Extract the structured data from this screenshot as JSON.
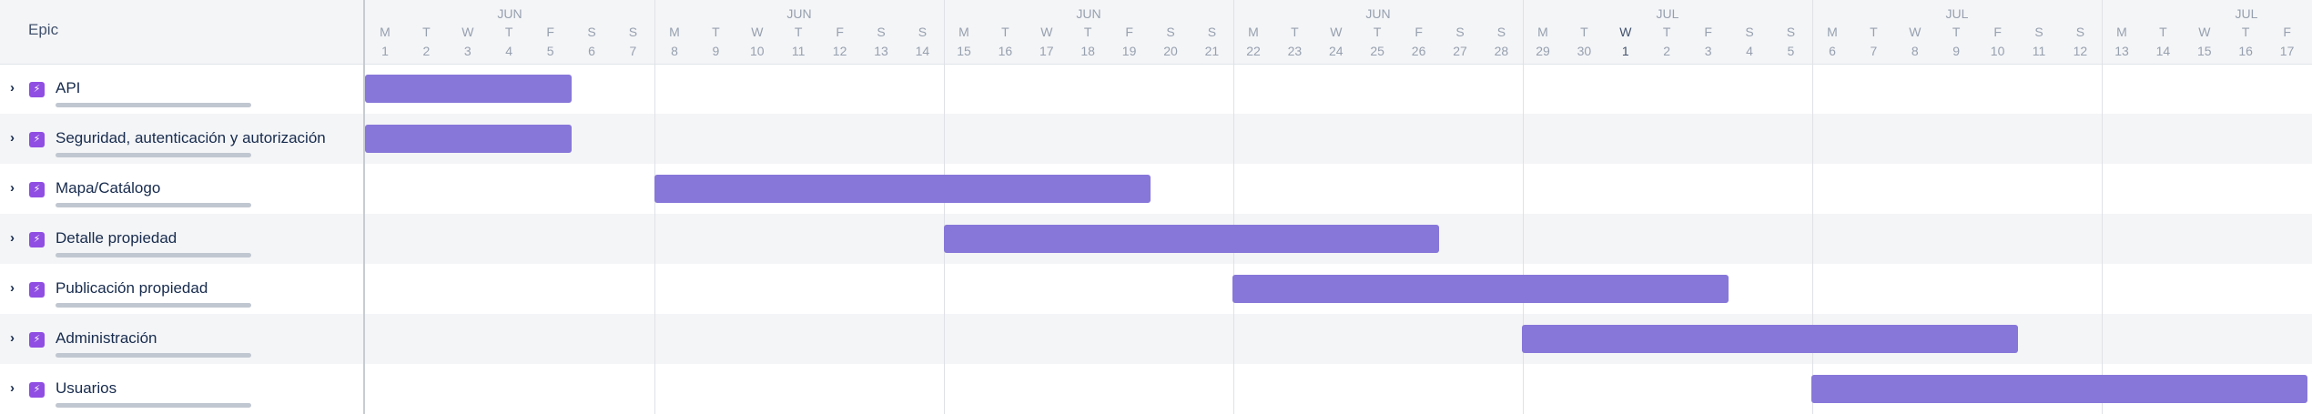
{
  "header": {
    "epic_label": "Epic"
  },
  "epics": [
    {
      "name": "API",
      "expand_icon": "chevron-right-icon",
      "type_icon": "epic-bolt-icon"
    },
    {
      "name": "Seguridad, autenticación y autorización",
      "expand_icon": "chevron-right-icon",
      "type_icon": "epic-bolt-icon"
    },
    {
      "name": "Mapa/Catálogo",
      "expand_icon": "chevron-right-icon",
      "type_icon": "epic-bolt-icon"
    },
    {
      "name": "Detalle propiedad",
      "expand_icon": "chevron-right-icon",
      "type_icon": "epic-bolt-icon"
    },
    {
      "name": "Publicación propiedad",
      "expand_icon": "chevron-right-icon",
      "type_icon": "epic-bolt-icon"
    },
    {
      "name": "Administración",
      "expand_icon": "chevron-right-icon",
      "type_icon": "epic-bolt-icon"
    },
    {
      "name": "Usuarios",
      "expand_icon": "chevron-right-icon",
      "type_icon": "epic-bolt-icon"
    }
  ],
  "timeline": {
    "weeks": [
      {
        "month": "JUN",
        "days": [
          {
            "dow": "M",
            "day": "1"
          },
          {
            "dow": "T",
            "day": "2"
          },
          {
            "dow": "W",
            "day": "3"
          },
          {
            "dow": "T",
            "day": "4"
          },
          {
            "dow": "F",
            "day": "5"
          },
          {
            "dow": "S",
            "day": "6"
          },
          {
            "dow": "S",
            "day": "7"
          }
        ]
      },
      {
        "month": "JUN",
        "days": [
          {
            "dow": "M",
            "day": "8"
          },
          {
            "dow": "T",
            "day": "9"
          },
          {
            "dow": "W",
            "day": "10"
          },
          {
            "dow": "T",
            "day": "11"
          },
          {
            "dow": "F",
            "day": "12"
          },
          {
            "dow": "S",
            "day": "13"
          },
          {
            "dow": "S",
            "day": "14"
          }
        ]
      },
      {
        "month": "JUN",
        "days": [
          {
            "dow": "M",
            "day": "15"
          },
          {
            "dow": "T",
            "day": "16"
          },
          {
            "dow": "W",
            "day": "17"
          },
          {
            "dow": "T",
            "day": "18"
          },
          {
            "dow": "F",
            "day": "19"
          },
          {
            "dow": "S",
            "day": "20"
          },
          {
            "dow": "S",
            "day": "21"
          }
        ]
      },
      {
        "month": "JUN",
        "days": [
          {
            "dow": "M",
            "day": "22"
          },
          {
            "dow": "T",
            "day": "23"
          },
          {
            "dow": "W",
            "day": "24"
          },
          {
            "dow": "T",
            "day": "25"
          },
          {
            "dow": "F",
            "day": "26"
          },
          {
            "dow": "S",
            "day": "27"
          },
          {
            "dow": "S",
            "day": "28"
          }
        ]
      },
      {
        "month": "JUL",
        "days": [
          {
            "dow": "M",
            "day": "29"
          },
          {
            "dow": "T",
            "day": "30"
          },
          {
            "dow": "W",
            "day": "1",
            "today": true
          },
          {
            "dow": "T",
            "day": "2"
          },
          {
            "dow": "F",
            "day": "3"
          },
          {
            "dow": "S",
            "day": "4"
          },
          {
            "dow": "S",
            "day": "5"
          }
        ]
      },
      {
        "month": "JUL",
        "days": [
          {
            "dow": "M",
            "day": "6"
          },
          {
            "dow": "T",
            "day": "7"
          },
          {
            "dow": "W",
            "day": "8"
          },
          {
            "dow": "T",
            "day": "9"
          },
          {
            "dow": "F",
            "day": "10"
          },
          {
            "dow": "S",
            "day": "11"
          },
          {
            "dow": "S",
            "day": "12"
          }
        ]
      },
      {
        "month": "JUL",
        "days": [
          {
            "dow": "M",
            "day": "13"
          },
          {
            "dow": "T",
            "day": "14"
          },
          {
            "dow": "W",
            "day": "15"
          },
          {
            "dow": "T",
            "day": "16"
          },
          {
            "dow": "F",
            "day": "17"
          }
        ]
      }
    ],
    "bars": [
      {
        "epic": "API",
        "start_day": "Jun 1",
        "end_day": "Jun 5"
      },
      {
        "epic": "Seguridad, autenticación y autorización",
        "start_day": "Jun 1",
        "end_day": "Jun 5"
      },
      {
        "epic": "Mapa/Catálogo",
        "start_day": "Jun 8",
        "end_day": "Jun 19"
      },
      {
        "epic": "Detalle propiedad",
        "start_day": "Jun 15",
        "end_day": "Jun 26"
      },
      {
        "epic": "Publicación propiedad",
        "start_day": "Jun 22",
        "end_day": "Jul 3"
      },
      {
        "epic": "Administración",
        "start_day": "Jun 29",
        "end_day": "Jul 10"
      },
      {
        "epic": "Usuarios",
        "start_day": "Jul 6",
        "end_day": "Jul 17"
      }
    ]
  },
  "colors": {
    "bar": "#8777d9",
    "epic_icon": "#904ee2",
    "header_bg": "#f4f5f7"
  }
}
